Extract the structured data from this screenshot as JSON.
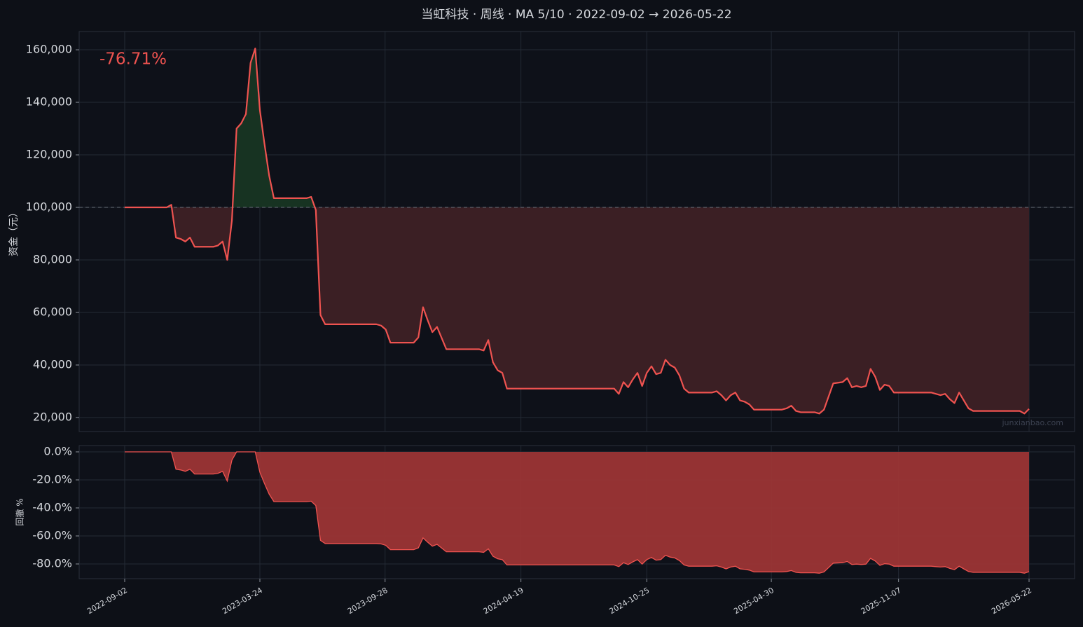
{
  "chart_data": [
    {
      "type": "line",
      "title": "当虹科技 · 周线 · MA 5/10 · 2022-09-02 → 2026-05-22",
      "y_label": "资金（元）",
      "annotation": "-76.71%",
      "watermark": "junxianbao.com",
      "color": "#ef5350",
      "gain_color": "#173322",
      "loss_color": "#3b1f24",
      "baseline": 100000,
      "grid": true,
      "x": [
        "2022-09-02",
        "2022-11-04",
        "2022-11-11",
        "2022-11-18",
        "2022-11-25",
        "2022-12-02",
        "2022-12-09",
        "2022-12-16",
        "2023-01-13",
        "2023-01-20",
        "2023-01-27",
        "2023-02-03",
        "2023-02-10",
        "2023-02-17",
        "2023-02-24",
        "2023-03-03",
        "2023-03-10",
        "2023-03-17",
        "2023-03-24",
        "2023-03-31",
        "2023-04-07",
        "2023-04-14",
        "2023-06-02",
        "2023-06-09",
        "2023-06-16",
        "2023-06-23",
        "2023-06-30",
        "2023-09-15",
        "2023-09-22",
        "2023-09-29",
        "2023-10-06",
        "2023-11-10",
        "2023-11-17",
        "2023-11-24",
        "2023-12-01",
        "2023-12-08",
        "2023-12-15",
        "2023-12-29",
        "2024-02-16",
        "2024-02-23",
        "2024-03-01",
        "2024-03-08",
        "2024-03-15",
        "2024-03-22",
        "2024-03-29",
        "2024-09-06",
        "2024-09-13",
        "2024-09-20",
        "2024-09-27",
        "2024-10-04",
        "2024-10-11",
        "2024-10-18",
        "2024-10-25",
        "2024-11-01",
        "2024-11-08",
        "2024-11-15",
        "2024-11-22",
        "2024-11-29",
        "2024-12-06",
        "2024-12-13",
        "2024-12-20",
        "2024-12-27",
        "2025-01-31",
        "2025-02-07",
        "2025-02-14",
        "2025-02-21",
        "2025-02-28",
        "2025-03-07",
        "2025-03-14",
        "2025-03-21",
        "2025-03-28",
        "2025-04-04",
        "2025-05-16",
        "2025-05-23",
        "2025-05-30",
        "2025-06-06",
        "2025-06-13",
        "2025-07-04",
        "2025-07-11",
        "2025-07-18",
        "2025-07-25",
        "2025-08-01",
        "2025-08-15",
        "2025-08-22",
        "2025-08-29",
        "2025-09-05",
        "2025-09-12",
        "2025-09-19",
        "2025-09-26",
        "2025-10-03",
        "2025-10-10",
        "2025-10-17",
        "2025-10-24",
        "2025-10-31",
        "2025-12-26",
        "2026-01-02",
        "2026-01-09",
        "2026-01-16",
        "2026-01-23",
        "2026-01-30",
        "2026-02-06",
        "2026-02-13",
        "2026-02-20",
        "2026-02-27",
        "2026-05-08",
        "2026-05-15",
        "2026-05-22"
      ],
      "values": [
        100000,
        100000,
        101000,
        88500,
        88000,
        87000,
        88500,
        85000,
        85000,
        85500,
        87000,
        80000,
        95000,
        130000,
        132000,
        135500,
        155000,
        160500,
        137000,
        124000,
        112000,
        103500,
        103500,
        104000,
        99000,
        59000,
        55500,
        55500,
        55000,
        53500,
        48500,
        48500,
        50500,
        62000,
        57000,
        52500,
        54500,
        46000,
        46000,
        45500,
        49500,
        41000,
        38000,
        37000,
        31000,
        31000,
        29000,
        33500,
        31500,
        34500,
        37000,
        32000,
        37000,
        39500,
        36500,
        37000,
        42000,
        40000,
        39000,
        36000,
        31000,
        29500,
        29500,
        30000,
        28500,
        26500,
        28500,
        29500,
        26500,
        26000,
        25000,
        23000,
        23000,
        23500,
        24500,
        22500,
        22000,
        22000,
        21500,
        23000,
        28000,
        33000,
        33500,
        35000,
        31500,
        32000,
        31500,
        32000,
        38500,
        35500,
        30500,
        32500,
        32000,
        29500,
        29500,
        29000,
        28500,
        29000,
        27000,
        25500,
        29500,
        26500,
        23500,
        22500,
        22500,
        21500,
        23290
      ],
      "ylim": [
        14660,
        166950
      ],
      "yticks": [
        {
          "value": 20000,
          "label": "20,000"
        },
        {
          "value": 40000,
          "label": "40,000"
        },
        {
          "value": 60000,
          "label": "60,000"
        },
        {
          "value": 80000,
          "label": "80,000"
        },
        {
          "value": 100000,
          "label": "100,000"
        },
        {
          "value": 120000,
          "label": "120,000"
        },
        {
          "value": 140000,
          "label": "140,000"
        },
        {
          "value": 160000,
          "label": "160,000"
        }
      ],
      "xticks": [
        "2022-09-02",
        "2023-03-24",
        "2023-09-28",
        "2024-04-19",
        "2024-10-25",
        "2025-04-30",
        "2025-11-07",
        "2026-05-22"
      ]
    },
    {
      "type": "area",
      "y_label": "回撤 %",
      "color": "#ef5350",
      "fill": "#9c3535",
      "grid": true,
      "values": [
        0,
        0,
        0,
        -12.4,
        -12.9,
        -13.9,
        -12.4,
        -15.8,
        -15.8,
        -15.3,
        -13.9,
        -20.8,
        -5.9,
        0,
        0,
        0,
        0,
        0,
        -14.6,
        -22.7,
        -30.2,
        -35.5,
        -35.5,
        -35.2,
        -38.3,
        -63.2,
        -65.4,
        -65.4,
        -65.7,
        -66.7,
        -69.8,
        -69.8,
        -68.5,
        -61.4,
        -64.5,
        -67.3,
        -66.0,
        -71.3,
        -71.3,
        -71.7,
        -69.2,
        -74.5,
        -76.3,
        -76.9,
        -80.7,
        -80.7,
        -81.9,
        -79.1,
        -80.4,
        -78.5,
        -76.9,
        -80.1,
        -76.9,
        -75.4,
        -77.3,
        -76.9,
        -73.8,
        -75.1,
        -75.7,
        -77.6,
        -80.7,
        -81.6,
        -81.6,
        -81.3,
        -82.2,
        -83.5,
        -82.2,
        -81.6,
        -83.5,
        -83.8,
        -84.4,
        -85.7,
        -85.7,
        -85.4,
        -84.7,
        -86.0,
        -86.3,
        -86.3,
        -86.6,
        -85.7,
        -82.6,
        -79.4,
        -79.1,
        -78.2,
        -80.4,
        -80.1,
        -80.4,
        -80.1,
        -76.0,
        -77.9,
        -81.0,
        -79.8,
        -80.1,
        -81.6,
        -81.6,
        -81.9,
        -82.2,
        -81.9,
        -83.2,
        -84.1,
        -81.6,
        -83.5,
        -85.4,
        -86.0,
        -86.0,
        -86.6,
        -85.5
      ],
      "ylim": [
        -90.5,
        4.5
      ],
      "yticks": [
        {
          "value": 0,
          "label": "0.0%"
        },
        {
          "value": -20,
          "label": "-20.0%"
        },
        {
          "value": -40,
          "label": "-40.0%"
        },
        {
          "value": -60,
          "label": "-60.0%"
        },
        {
          "value": -80,
          "label": "-80.0%"
        }
      ]
    }
  ]
}
